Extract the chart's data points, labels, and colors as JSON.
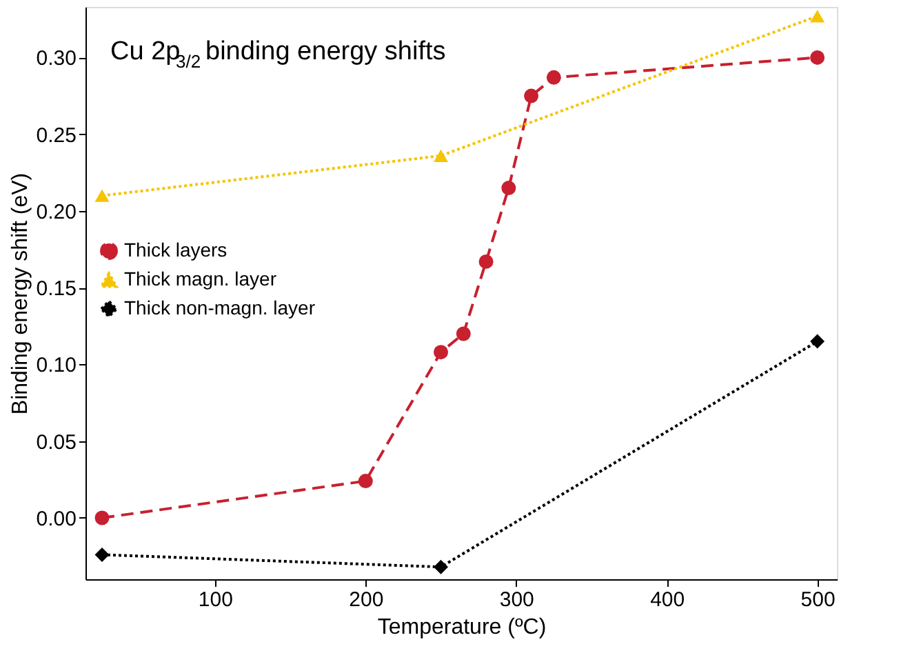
{
  "chart_data": {
    "type": "line",
    "title": "Cu 2p$_{3/2}$ binding energy shifts",
    "xlabel": "Temperature (ºC)",
    "ylabel": "Binding energy shift (eV)",
    "xlim": [
      14,
      513
    ],
    "xticks": [
      100,
      200,
      300,
      400,
      500
    ],
    "ylim": [
      -0.04,
      0.333
    ],
    "yticks": [
      {
        "value": 0,
        "label": "0.00"
      },
      0.05,
      {
        "value": 0.1,
        "label": "0.10"
      },
      0.15,
      {
        "value": 0.2,
        "label": "0.20"
      },
      0.25,
      {
        "value": 0.3,
        "label": "0.30"
      }
    ],
    "grid": false,
    "legend": "left",
    "series": [
      {
        "name": "Thick layers",
        "color": "#c8202f",
        "marker": "circle",
        "line_style": "dashed",
        "x": [
          25,
          200,
          250,
          265,
          280,
          295,
          310,
          325,
          500
        ],
        "values": [
          0.0,
          0.024,
          0.108,
          0.12,
          0.167,
          0.215,
          0.275,
          0.287,
          0.3
        ]
      },
      {
        "name": "Thick magn. layer",
        "color": "#f5c400",
        "marker": "triangle",
        "line_style": "dotted",
        "x": [
          25,
          250,
          500
        ],
        "values": [
          0.21,
          0.236,
          0.327
        ]
      },
      {
        "name": "Thick non-magn. layer",
        "color": "#000000",
        "marker": "diamond",
        "line_style": "dotted",
        "x": [
          25,
          250,
          500
        ],
        "values": [
          -0.024,
          -0.032,
          0.115
        ]
      }
    ]
  }
}
